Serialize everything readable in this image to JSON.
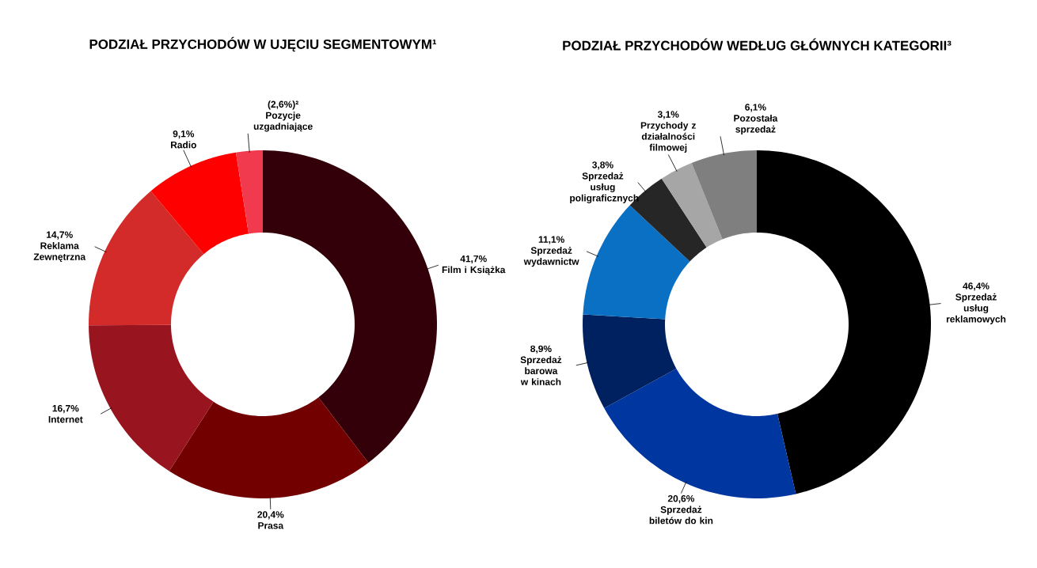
{
  "chart_data": [
    {
      "type": "donut",
      "title": "PODZIAŁ PRZYCHODÓW W UJĘCIU SEGMENTOWYM¹",
      "categories": [
        "Film i Książka",
        "Prasa",
        "Internet",
        "Reklama Zewnętrzna",
        "Radio",
        "Pozycje uzgadniające"
      ],
      "values": [
        41.7,
        20.4,
        16.7,
        14.7,
        9.1,
        2.6
      ],
      "value_labels": [
        "41,7%",
        "20,4%",
        "16,7%",
        "14,7%",
        "9,1%",
        "(2,6%)²"
      ],
      "colors": [
        "#33000a",
        "#730000",
        "#981520",
        "#d32a2a",
        "#ff0000",
        "#f23a4e"
      ]
    },
    {
      "type": "donut",
      "title": "PODZIAŁ PRZYCHODÓW WEDŁUG GŁÓWNYCH KATEGORII³",
      "categories": [
        "Sprzedaż usług reklamowych",
        "Sprzedaż biletów do kin",
        "Sprzedaż barowa w kinach",
        "Sprzedaż wydawnictw",
        "Sprzedaż usług poligraficznych",
        "Przychody z działalności filmowej",
        "Pozostała sprzedaż"
      ],
      "values": [
        46.4,
        20.6,
        8.9,
        11.1,
        3.8,
        3.1,
        6.1
      ],
      "value_labels": [
        "46,4%",
        "20,6%",
        "8,9%",
        "11,1%",
        "3,8%",
        "3,1%",
        "6,1%"
      ],
      "colors": [
        "#000000",
        "#0036a0",
        "#00215f",
        "#0a70c4",
        "#262626",
        "#a6a6a6",
        "#7f7f7f"
      ]
    }
  ]
}
